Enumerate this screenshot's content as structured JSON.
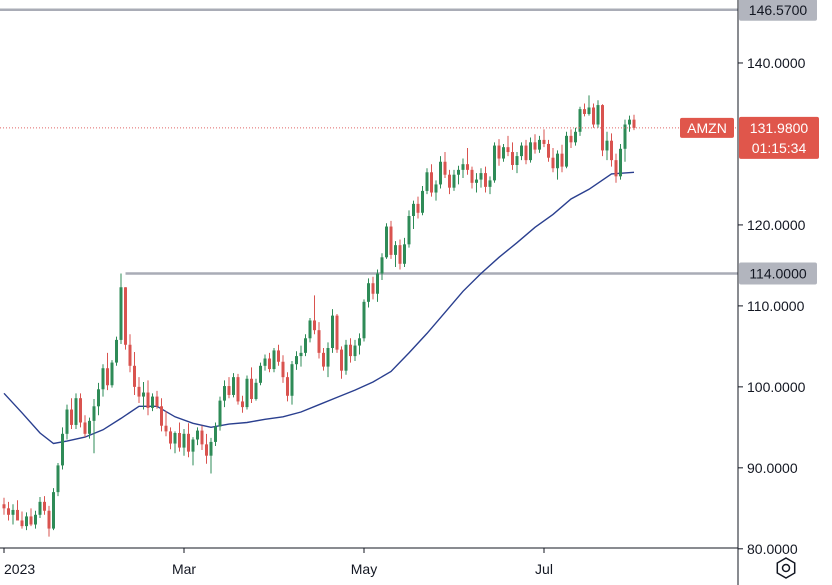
{
  "chart_data": {
    "type": "candlestick",
    "symbol": "AMZN",
    "last_price": "131.9800",
    "countdown": "01:15:34",
    "y_range": [
      78,
      150
    ],
    "y_ticks": [
      "140.0000",
      "120.0000",
      "110.0000",
      "100.0000",
      "90.0000",
      "80.0000"
    ],
    "y_tick_values": [
      140,
      120,
      110,
      100,
      90,
      80
    ],
    "x_labels": [
      "2023",
      "Mar",
      "May",
      "Jul"
    ],
    "x_label_index": [
      0,
      40,
      80,
      120
    ],
    "levels": [
      {
        "value": 146.57,
        "label": "146.5700"
      },
      {
        "value": 114.0,
        "label": "114.0000"
      }
    ],
    "moving_average": {
      "color": "#2a3f8f",
      "values": [
        [
          0,
          99.2
        ],
        [
          4,
          96.8
        ],
        [
          8,
          94.3
        ],
        [
          11,
          93.0
        ],
        [
          14,
          93.3
        ],
        [
          18,
          93.8
        ],
        [
          22,
          94.7
        ],
        [
          26,
          96.1
        ],
        [
          30,
          97.6
        ],
        [
          34,
          97.6
        ],
        [
          38,
          96.3
        ],
        [
          42,
          95.5
        ],
        [
          46,
          95.0
        ],
        [
          50,
          95.4
        ],
        [
          54,
          95.6
        ],
        [
          58,
          96.0
        ],
        [
          62,
          96.3
        ],
        [
          66,
          96.9
        ],
        [
          70,
          97.8
        ],
        [
          74,
          98.7
        ],
        [
          78,
          99.6
        ],
        [
          82,
          100.6
        ],
        [
          86,
          101.9
        ],
        [
          90,
          104.2
        ],
        [
          94,
          106.6
        ],
        [
          98,
          109.2
        ],
        [
          102,
          111.8
        ],
        [
          106,
          114.0
        ],
        [
          110,
          116.0
        ],
        [
          114,
          117.8
        ],
        [
          118,
          119.7
        ],
        [
          122,
          121.3
        ],
        [
          126,
          123.2
        ],
        [
          130,
          124.4
        ],
        [
          135,
          126.3
        ],
        [
          140,
          126.5
        ]
      ]
    },
    "ohlc": [
      [
        85.5,
        86.3,
        84.2,
        85.0
      ],
      [
        85.0,
        85.8,
        83.5,
        84.2
      ],
      [
        84.2,
        85.5,
        83.0,
        84.8
      ],
      [
        84.8,
        86.0,
        84.0,
        83.5
      ],
      [
        83.5,
        84.6,
        82.5,
        82.8
      ],
      [
        82.8,
        84.5,
        82.3,
        84.0
      ],
      [
        84.0,
        85.0,
        82.8,
        83.0
      ],
      [
        83.0,
        84.7,
        82.5,
        84.2
      ],
      [
        84.2,
        86.4,
        83.8,
        85.8
      ],
      [
        85.8,
        86.5,
        84.2,
        84.7
      ],
      [
        84.7,
        85.3,
        81.5,
        82.5
      ],
      [
        82.5,
        87.5,
        82.3,
        87.0
      ],
      [
        87.0,
        90.6,
        86.5,
        90.3
      ],
      [
        90.3,
        95.0,
        89.8,
        94.2
      ],
      [
        94.2,
        97.8,
        93.5,
        97.2
      ],
      [
        97.2,
        98.6,
        94.8,
        95.3
      ],
      [
        95.3,
        99.2,
        94.8,
        98.6
      ],
      [
        98.6,
        99.2,
        95.0,
        95.6
      ],
      [
        95.6,
        96.5,
        93.8,
        94.2
      ],
      [
        94.2,
        96.2,
        93.6,
        95.8
      ],
      [
        95.8,
        98.5,
        91.8,
        97.6
      ],
      [
        97.6,
        100.5,
        96.5,
        99.7
      ],
      [
        99.7,
        102.8,
        98.8,
        102.3
      ],
      [
        102.3,
        104.2,
        99.6,
        100.2
      ],
      [
        100.2,
        103.3,
        99.9,
        103.0
      ],
      [
        103.0,
        106.2,
        102.6,
        105.8
      ],
      [
        105.8,
        114.0,
        105.3,
        112.3
      ],
      [
        112.3,
        112.3,
        104.6,
        105.2
      ],
      [
        105.2,
        106.5,
        101.8,
        102.6
      ],
      [
        102.6,
        104.3,
        99.0,
        100.0
      ],
      [
        100.0,
        101.2,
        98.0,
        98.8
      ],
      [
        98.8,
        100.6,
        97.2,
        99.3
      ],
      [
        99.3,
        100.8,
        96.5,
        97.4
      ],
      [
        97.4,
        99.2,
        97.0,
        98.8
      ],
      [
        98.8,
        99.5,
        97.3,
        97.6
      ],
      [
        97.6,
        98.6,
        94.5,
        95.2
      ],
      [
        95.2,
        97.0,
        93.9,
        94.5
      ],
      [
        94.5,
        95.0,
        92.3,
        93.0
      ],
      [
        93.0,
        94.5,
        91.8,
        94.3
      ],
      [
        94.3,
        95.6,
        92.0,
        92.5
      ],
      [
        92.5,
        94.8,
        91.5,
        94.2
      ],
      [
        94.2,
        95.5,
        91.3,
        92.0
      ],
      [
        92.0,
        93.8,
        90.3,
        93.5
      ],
      [
        93.5,
        95.0,
        92.8,
        94.6
      ],
      [
        94.6,
        95.2,
        92.2,
        92.9
      ],
      [
        92.9,
        94.2,
        90.5,
        91.5
      ],
      [
        91.5,
        93.7,
        89.3,
        93.2
      ],
      [
        93.2,
        95.6,
        92.7,
        95.1
      ],
      [
        95.1,
        98.8,
        94.6,
        98.3
      ],
      [
        98.3,
        100.8,
        97.5,
        100.1
      ],
      [
        100.1,
        101.2,
        98.6,
        99.0
      ],
      [
        99.0,
        101.7,
        98.7,
        101.2
      ],
      [
        101.2,
        101.6,
        97.8,
        98.2
      ],
      [
        98.2,
        98.9,
        96.8,
        97.5
      ],
      [
        97.5,
        101.4,
        97.2,
        101.0
      ],
      [
        101.0,
        102.4,
        98.0,
        98.5
      ],
      [
        98.5,
        101.0,
        98.3,
        100.5
      ],
      [
        100.5,
        103.0,
        100.2,
        102.6
      ],
      [
        102.6,
        104.0,
        102.0,
        103.5
      ],
      [
        103.5,
        104.2,
        101.8,
        102.2
      ],
      [
        102.2,
        104.8,
        101.8,
        104.5
      ],
      [
        104.5,
        105.2,
        102.6,
        103.1
      ],
      [
        103.1,
        103.9,
        100.5,
        101.2
      ],
      [
        101.2,
        101.8,
        98.2,
        98.9
      ],
      [
        98.9,
        103.2,
        97.8,
        102.8
      ],
      [
        102.8,
        104.4,
        102.1,
        103.8
      ],
      [
        103.8,
        105.1,
        102.5,
        104.2
      ],
      [
        104.2,
        106.5,
        103.8,
        106.0
      ],
      [
        106.0,
        108.5,
        105.5,
        108.2
      ],
      [
        108.2,
        111.3,
        106.5,
        107.0
      ],
      [
        107.0,
        108.0,
        103.5,
        104.2
      ],
      [
        104.2,
        104.8,
        102.0,
        102.5
      ],
      [
        102.5,
        105.5,
        101.2,
        104.8
      ],
      [
        104.8,
        109.6,
        104.2,
        108.8
      ],
      [
        108.8,
        109.0,
        104.2,
        104.6
      ],
      [
        104.6,
        105.0,
        101.0,
        102.0
      ],
      [
        102.0,
        105.8,
        101.5,
        105.2
      ],
      [
        105.2,
        106.0,
        103.0,
        103.8
      ],
      [
        103.8,
        105.8,
        103.2,
        105.1
      ],
      [
        105.1,
        106.6,
        104.0,
        106.0
      ],
      [
        106.0,
        110.8,
        105.6,
        110.5
      ],
      [
        110.5,
        113.4,
        109.8,
        112.8
      ],
      [
        112.8,
        113.6,
        110.8,
        111.5
      ],
      [
        111.5,
        114.5,
        110.5,
        114.0
      ],
      [
        114.0,
        116.5,
        113.2,
        116.0
      ],
      [
        116.0,
        120.2,
        115.8,
        119.8
      ],
      [
        119.8,
        120.5,
        115.8,
        116.3
      ],
      [
        116.3,
        118.0,
        114.8,
        117.5
      ],
      [
        117.5,
        118.2,
        114.5,
        115.2
      ],
      [
        115.2,
        118.4,
        114.8,
        117.6
      ],
      [
        117.6,
        121.8,
        117.2,
        121.1
      ],
      [
        121.1,
        123.0,
        119.5,
        122.6
      ],
      [
        122.6,
        123.5,
        120.8,
        121.5
      ],
      [
        121.5,
        124.8,
        121.2,
        124.2
      ],
      [
        124.2,
        127.0,
        123.8,
        126.5
      ],
      [
        126.5,
        127.5,
        123.5,
        124.0
      ],
      [
        124.0,
        125.5,
        123.0,
        125.0
      ],
      [
        125.0,
        128.5,
        124.5,
        127.8
      ],
      [
        127.8,
        129.0,
        125.8,
        126.2
      ],
      [
        126.2,
        126.8,
        123.8,
        124.6
      ],
      [
        124.6,
        126.8,
        124.2,
        126.2
      ],
      [
        126.2,
        127.3,
        125.0,
        126.8
      ],
      [
        126.8,
        128.2,
        125.8,
        127.5
      ],
      [
        127.5,
        129.5,
        126.2,
        126.8
      ],
      [
        126.8,
        127.2,
        124.5,
        125.2
      ],
      [
        125.2,
        126.4,
        124.0,
        125.6
      ],
      [
        125.6,
        127.0,
        124.6,
        126.4
      ],
      [
        126.4,
        127.2,
        124.0,
        124.7
      ],
      [
        124.7,
        126.0,
        123.8,
        125.5
      ],
      [
        125.5,
        130.2,
        125.2,
        129.8
      ],
      [
        129.8,
        130.6,
        127.3,
        128.2
      ],
      [
        128.2,
        130.0,
        127.8,
        129.6
      ],
      [
        129.6,
        131.0,
        128.5,
        129.0
      ],
      [
        129.0,
        130.2,
        126.8,
        127.4
      ],
      [
        127.4,
        129.0,
        126.4,
        128.5
      ],
      [
        128.5,
        130.2,
        128.0,
        129.8
      ],
      [
        129.8,
        130.5,
        127.5,
        128.0
      ],
      [
        128.0,
        130.8,
        127.7,
        130.2
      ],
      [
        130.2,
        131.2,
        128.8,
        129.3
      ],
      [
        129.3,
        131.0,
        128.9,
        130.5
      ],
      [
        130.5,
        131.8,
        129.6,
        130.0
      ],
      [
        130.0,
        130.5,
        127.8,
        128.3
      ],
      [
        128.3,
        129.5,
        126.5,
        127.0
      ],
      [
        127.0,
        129.2,
        125.6,
        128.8
      ],
      [
        128.8,
        129.9,
        126.5,
        127.2
      ],
      [
        127.2,
        131.5,
        127.0,
        131.0
      ],
      [
        131.0,
        131.8,
        129.5,
        130.2
      ],
      [
        130.2,
        132.0,
        129.8,
        131.5
      ],
      [
        131.5,
        134.6,
        131.0,
        134.3
      ],
      [
        134.3,
        135.0,
        133.4,
        133.7
      ],
      [
        133.7,
        136.0,
        133.5,
        134.5
      ],
      [
        134.5,
        135.0,
        132.0,
        132.4
      ],
      [
        132.4,
        135.4,
        132.0,
        134.8
      ],
      [
        134.8,
        134.9,
        128.5,
        129.2
      ],
      [
        129.2,
        131.5,
        128.0,
        130.4
      ],
      [
        130.4,
        131.3,
        127.2,
        128.0
      ],
      [
        128.0,
        128.8,
        125.2,
        126.0
      ],
      [
        126.0,
        130.0,
        125.6,
        129.4
      ],
      [
        129.4,
        133.0,
        127.8,
        132.4
      ],
      [
        132.4,
        133.5,
        131.5,
        133.0
      ],
      [
        133.0,
        133.6,
        131.7,
        131.98
      ]
    ]
  }
}
